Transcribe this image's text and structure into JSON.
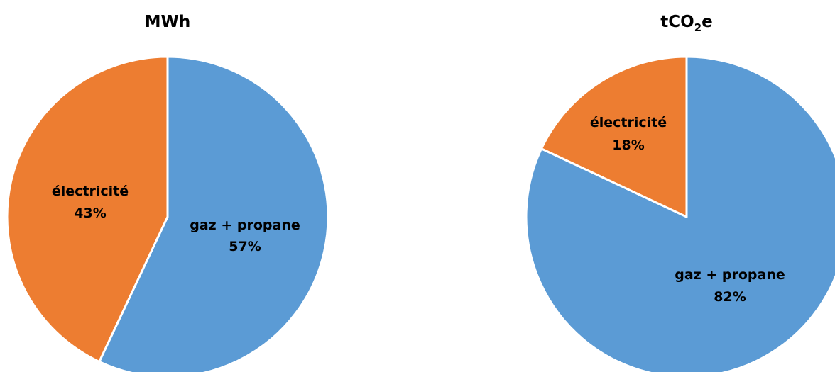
{
  "chart_data": [
    {
      "type": "pie",
      "title": "MWh",
      "categories": [
        "gaz + propane",
        "électricité"
      ],
      "values": [
        57,
        43
      ],
      "labels": [
        "57%",
        "43%"
      ],
      "colors": [
        "#5B9BD5",
        "#ED7D31"
      ],
      "start_angle_deg": 0,
      "direction": "clockwise",
      "legend": "none"
    },
    {
      "type": "pie",
      "title_main": "tCO",
      "title_sub": "2",
      "title_tail": "e",
      "categories": [
        "gaz + propane",
        "électricité"
      ],
      "values": [
        82,
        18
      ],
      "labels": [
        "82%",
        "18%"
      ],
      "colors": [
        "#5B9BD5",
        "#ED7D31"
      ],
      "start_angle_deg": 0,
      "direction": "clockwise",
      "legend": "none"
    }
  ]
}
